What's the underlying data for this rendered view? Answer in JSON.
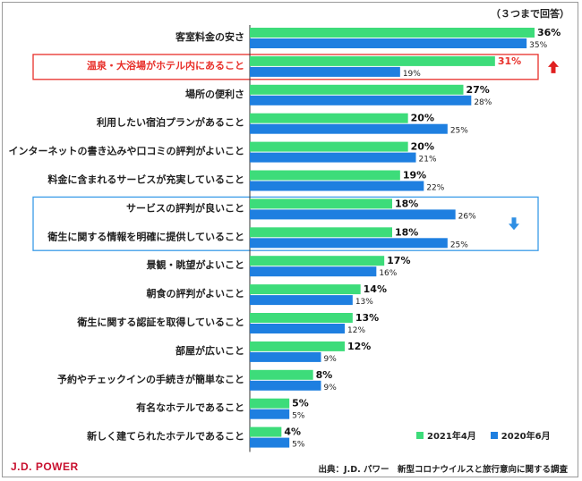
{
  "note": "（３つまで回答）",
  "footer": {
    "brand": "J.D. POWER",
    "source": "出典：J.D. パワー　新型コロナウイルスと旅行意向に関する調査"
  },
  "colors": {
    "series_2021": "#3ddc7a",
    "series_2020": "#1e7fe0",
    "highlight_up": "#e8302a",
    "highlight_down": "#3a9be8"
  },
  "chart_data": {
    "type": "bar",
    "orientation": "horizontal",
    "categories": [
      "客室料金の安さ",
      "温泉・大浴場がホテル内にあること",
      "場所の便利さ",
      "利用したい宿泊プランがあること",
      "インターネットの書き込みや口コミの評判がよいこと",
      "料金に含まれるサービスが充実していること",
      "サービスの評判が良いこと",
      "衛生に関する情報を明確に提供していること",
      "景観・眺望がよいこと",
      "朝食の評判がよいこと",
      "衛生に関する認証を取得していること",
      "部屋が広いこと",
      "予約やチェックインの手続きが簡単なこと",
      "有名なホテルであること",
      "新しく建てられたホテルであること"
    ],
    "series": [
      {
        "name": "2021年4月",
        "values": [
          36,
          31,
          27,
          20,
          20,
          19,
          18,
          18,
          17,
          14,
          13,
          12,
          8,
          5,
          4
        ]
      },
      {
        "name": "2020年6月",
        "values": [
          35,
          19,
          28,
          25,
          21,
          22,
          26,
          25,
          16,
          13,
          12,
          9,
          9,
          5,
          5
        ]
      }
    ],
    "unit": "%",
    "xlim": [
      0,
      36
    ],
    "legend_position": "bottom-right",
    "highlights": [
      {
        "categories": [
          1
        ],
        "direction": "up",
        "label_color": "#e8302a"
      },
      {
        "categories": [
          6,
          7
        ],
        "direction": "down"
      }
    ]
  }
}
